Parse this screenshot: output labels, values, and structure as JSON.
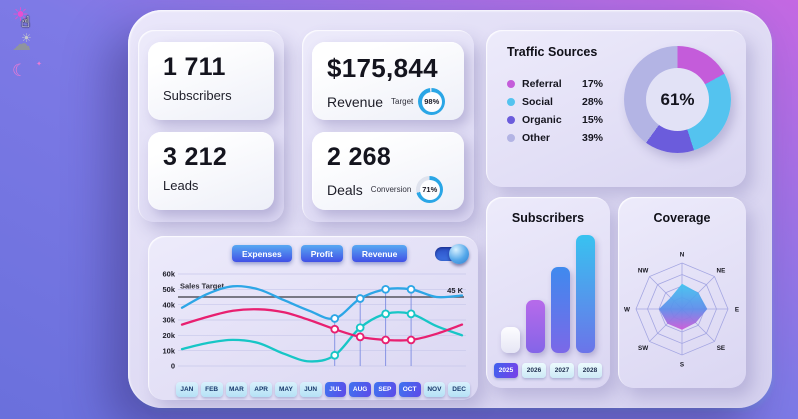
{
  "sidebar": {
    "icons": [
      {
        "name": "sun-icon",
        "glyph": "☀"
      },
      {
        "name": "cloud-icon",
        "glyph": "☁",
        "sun_glyph": "☀"
      },
      {
        "name": "moon-icon",
        "glyph": "☾",
        "star_glyph": "✦"
      }
    ],
    "cursor_glyph": "☝"
  },
  "stats": {
    "subscribers": {
      "value": "1 711",
      "label": "Subscribers"
    },
    "leads": {
      "value": "3 212",
      "label": "Leads"
    },
    "revenue": {
      "value": "$175,844",
      "label": "Revenue",
      "gauge_label": "Target",
      "gauge_value": "98%",
      "gauge_pct": 98
    },
    "deals": {
      "value": "2 268",
      "label": "Deals",
      "gauge_label": "Conversion",
      "gauge_value": "71%",
      "gauge_pct": 71
    },
    "gauge_color": "#2aa6e6",
    "gauge_track": "#dfe3ee"
  },
  "traffic": {
    "title": "Traffic Sources",
    "center_value": "61%"
  },
  "line_panel": {
    "buttons": [
      "Expenses",
      "Profit",
      "Revenue"
    ],
    "toggle_on": true
  },
  "subscribers_panel": {
    "title": "Subscribers"
  },
  "coverage_panel": {
    "title": "Coverage"
  },
  "chart_data": [
    {
      "type": "pie",
      "name": "traffic-donut",
      "center_label": "61%",
      "labels": [
        "Referral",
        "Social",
        "Organic",
        "Other"
      ],
      "values": [
        17,
        28,
        15,
        39
      ],
      "value_labels": [
        "17%",
        "28%",
        "15%",
        "39%"
      ],
      "colors": [
        "#c45cda",
        "#54c3ef",
        "#6b5cdc",
        "#b3b4e4"
      ],
      "legend_position": "left"
    },
    {
      "type": "line",
      "name": "monthly-trends",
      "unit": "k",
      "x": [
        "JAN",
        "FEB",
        "MAR",
        "APR",
        "MAY",
        "JUN",
        "JUL",
        "AUG",
        "SEP",
        "OCT",
        "NOV",
        "DEC"
      ],
      "highlight_indices": [
        6,
        7,
        8,
        9
      ],
      "yticks": [
        60,
        50,
        40,
        30,
        20,
        10,
        0
      ],
      "ytick_labels": [
        "60k",
        "50k",
        "40k",
        "30k",
        "20k",
        "10k",
        "0"
      ],
      "ylim": [
        0,
        60
      ],
      "target": {
        "value": 45,
        "label": "45 K",
        "name": "Sales Target"
      },
      "grid": true,
      "series": [
        {
          "name": "Revenue",
          "color": "#2da6e6",
          "values": [
            38,
            47,
            52,
            50,
            43,
            36,
            31,
            44,
            50,
            50,
            45,
            46
          ]
        },
        {
          "name": "Profit",
          "color": "#e82070",
          "values": [
            27,
            32,
            36,
            37,
            35,
            30,
            24,
            19,
            17,
            17,
            21,
            27
          ]
        },
        {
          "name": "Expenses",
          "color": "#17c6c6",
          "values": [
            11,
            15,
            17,
            15,
            8,
            3,
            7,
            25,
            34,
            34,
            26,
            20
          ]
        }
      ]
    },
    {
      "type": "bar",
      "name": "subscribers-by-year",
      "categories": [
        "2025",
        "2026",
        "2027",
        "2028"
      ],
      "values_pct_of_max": [
        22,
        45,
        73,
        100
      ],
      "active_category": "2025",
      "colors": [
        [
          "#fdfdff",
          "#e6e6f5"
        ],
        [
          "#b76aea",
          "#8465e8"
        ],
        [
          "#3f8aee",
          "#7b68e8"
        ],
        [
          "#38c2f0",
          "#6b74e9"
        ]
      ]
    },
    {
      "type": "radar",
      "name": "coverage",
      "axes": [
        "N",
        "NE",
        "E",
        "SE",
        "S",
        "SW",
        "W",
        "NW"
      ],
      "values": [
        0.55,
        0.5,
        0.55,
        0.42,
        0.45,
        0.45,
        0.5,
        0.35
      ],
      "max": 1,
      "rings": 4,
      "web_color": "#a4a6e2",
      "fill_gradient": [
        "#3fc4f0",
        "#5d8cea",
        "#cb58d8"
      ]
    }
  ]
}
